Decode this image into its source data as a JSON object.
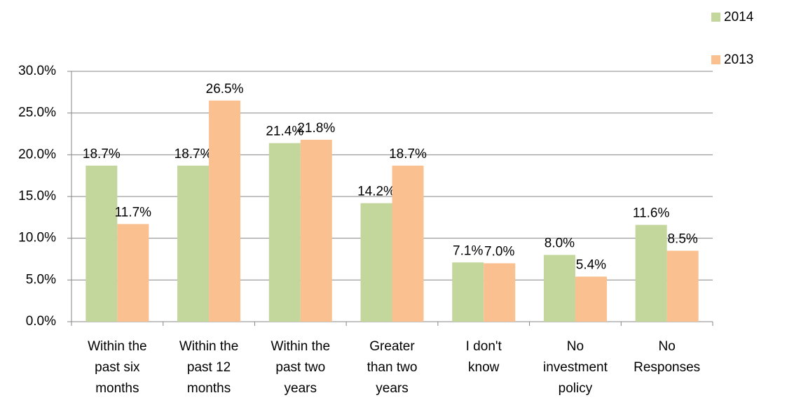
{
  "chart_data": {
    "type": "bar",
    "categories": [
      "Within the\npast six\nmonths",
      "Within the\npast 12\nmonths",
      "Within the\npast two\nyears",
      "Greater\nthan two\nyears",
      "I don't\nknow",
      "No\ninvestment\npolicy",
      "No\nResponses"
    ],
    "series": [
      {
        "name": "2014",
        "color": "#c3d69b",
        "values": [
          18.7,
          18.7,
          21.4,
          14.2,
          7.1,
          8.0,
          11.6
        ],
        "value_labels": [
          "18.7%",
          "18.7%",
          "21.4%",
          "14.2%",
          "7.1%",
          "8.0%",
          "11.6%"
        ]
      },
      {
        "name": "2013",
        "color": "#fac090",
        "values": [
          11.7,
          26.5,
          21.8,
          18.7,
          7.0,
          5.4,
          8.5
        ],
        "value_labels": [
          "11.7%",
          "26.5%",
          "21.8%",
          "18.7%",
          "7.0%",
          "5.4%",
          "8.5%"
        ]
      }
    ],
    "ylim": [
      0,
      30
    ],
    "yticks": [
      {
        "value": 0,
        "label": "0.0%"
      },
      {
        "value": 5,
        "label": "5.0%"
      },
      {
        "value": 10,
        "label": "10.0%"
      },
      {
        "value": 15,
        "label": "15.0%"
      },
      {
        "value": 20,
        "label": "20.0%"
      },
      {
        "value": 25,
        "label": "25.0%"
      },
      {
        "value": 30,
        "label": "30.0%"
      }
    ],
    "grid": true,
    "legend": "top-right"
  }
}
